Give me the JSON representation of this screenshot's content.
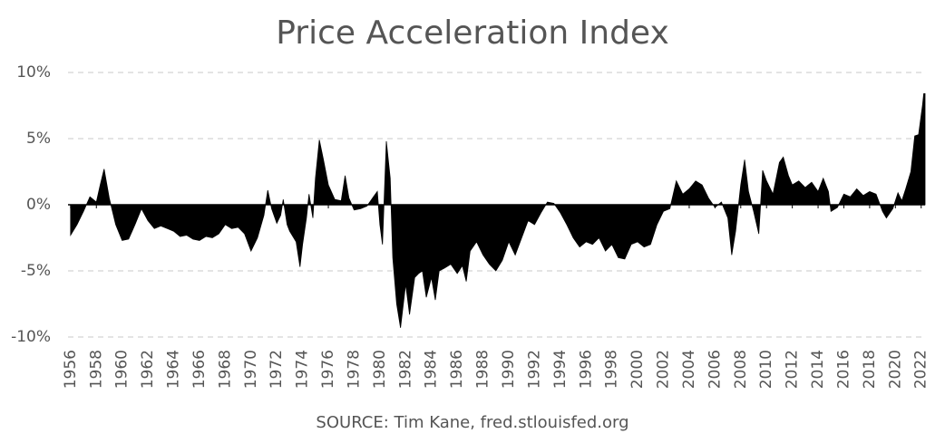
{
  "chart_data": {
    "type": "area",
    "title": "Price Acceleration Index",
    "source": "SOURCE: Tim Kane, fred.stlouisfed.org",
    "color": "#000000",
    "grid": true,
    "xlim": [
      1955.8,
      2022.3
    ],
    "ylim": [
      -10,
      10
    ],
    "yticks": [
      {
        "value": 10,
        "label": "10%"
      },
      {
        "value": 5,
        "label": "5%"
      },
      {
        "value": 0,
        "label": "0%"
      },
      {
        "value": -5,
        "label": "-5%"
      },
      {
        "value": -10,
        "label": "-10%"
      }
    ],
    "xticks": [
      1956,
      1958,
      1960,
      1962,
      1964,
      1966,
      1968,
      1970,
      1972,
      1974,
      1976,
      1978,
      1980,
      1982,
      1984,
      1986,
      1988,
      1990,
      1992,
      1994,
      1996,
      1998,
      2000,
      2002,
      2004,
      2006,
      2008,
      2010,
      2012,
      2014,
      2016,
      2018,
      2020,
      2022
    ],
    "x": [
      1956.0,
      1956.5,
      1957.0,
      1957.5,
      1958.0,
      1958.3,
      1958.6,
      1959.0,
      1959.5,
      1960.0,
      1960.5,
      1961.0,
      1961.5,
      1962.0,
      1962.5,
      1963.0,
      1963.5,
      1964.0,
      1964.5,
      1965.0,
      1965.5,
      1966.0,
      1966.5,
      1967.0,
      1967.5,
      1968.0,
      1968.5,
      1969.0,
      1969.5,
      1970.0,
      1970.5,
      1971.0,
      1971.3,
      1971.6,
      1972.0,
      1972.3,
      1972.5,
      1972.8,
      1973.0,
      1973.5,
      1973.8,
      1974.0,
      1974.3,
      1974.5,
      1974.8,
      1975.0,
      1975.3,
      1975.6,
      1976.0,
      1976.5,
      1977.0,
      1977.3,
      1977.6,
      1978.0,
      1978.5,
      1979.0,
      1979.5,
      1979.8,
      1980.0,
      1980.2,
      1980.5,
      1980.8,
      1981.0,
      1981.3,
      1981.6,
      1982.0,
      1982.3,
      1982.7,
      1983.0,
      1983.3,
      1983.6,
      1984.0,
      1984.3,
      1984.6,
      1985.0,
      1985.5,
      1986.0,
      1986.4,
      1986.7,
      1987.0,
      1987.5,
      1988.0,
      1988.5,
      1989.0,
      1989.5,
      1990.0,
      1990.5,
      1991.0,
      1991.5,
      1992.0,
      1992.5,
      1993.0,
      1993.5,
      1994.0,
      1994.5,
      1995.0,
      1995.5,
      1996.0,
      1996.5,
      1997.0,
      1997.5,
      1998.0,
      1998.5,
      1999.0,
      1999.5,
      2000.0,
      2000.5,
      2001.0,
      2001.5,
      2002.0,
      2002.5,
      2003.0,
      2003.5,
      2004.0,
      2004.5,
      2005.0,
      2005.5,
      2006.0,
      2006.5,
      2007.0,
      2007.3,
      2007.6,
      2008.0,
      2008.3,
      2008.6,
      2009.0,
      2009.4,
      2009.7,
      2010.0,
      2010.5,
      2011.0,
      2011.3,
      2011.7,
      2012.0,
      2012.5,
      2013.0,
      2013.5,
      2014.0,
      2014.4,
      2014.8,
      2015.0,
      2015.5,
      2016.0,
      2016.5,
      2017.0,
      2017.5,
      2018.0,
      2018.5,
      2019.0,
      2019.3,
      2019.8,
      2020.2,
      2020.5,
      2020.8,
      2021.2,
      2021.5,
      2021.8,
      2022.1,
      2022.2,
      2022.3
    ],
    "values": [
      -2.3,
      -1.5,
      -0.5,
      0.6,
      0.2,
      1.5,
      2.7,
      0.5,
      -1.5,
      -2.7,
      -2.6,
      -1.5,
      -0.3,
      -1.2,
      -1.8,
      -1.6,
      -1.8,
      -2.0,
      -2.4,
      -2.3,
      -2.6,
      -2.7,
      -2.4,
      -2.5,
      -2.2,
      -1.5,
      -1.8,
      -1.7,
      -2.2,
      -3.5,
      -2.5,
      -0.8,
      1.1,
      -0.3,
      -1.4,
      -0.8,
      0.4,
      -1.5,
      -2.0,
      -2.8,
      -4.7,
      -3.0,
      -1.0,
      0.8,
      -1.0,
      2.0,
      4.9,
      3.5,
      1.5,
      0.4,
      0.3,
      2.2,
      0.5,
      -0.4,
      -0.3,
      -0.1,
      0.6,
      1.0,
      -1.5,
      -3.0,
      4.8,
      2.0,
      -4.0,
      -7.5,
      -9.3,
      -6.0,
      -8.3,
      -5.5,
      -5.2,
      -5.0,
      -7.0,
      -5.5,
      -7.2,
      -5.0,
      -4.8,
      -4.5,
      -5.2,
      -4.6,
      -5.8,
      -3.5,
      -2.8,
      -3.8,
      -4.5,
      -5.0,
      -4.2,
      -2.8,
      -3.8,
      -2.5,
      -1.2,
      -1.5,
      -0.6,
      0.2,
      0.1,
      -0.6,
      -1.5,
      -2.5,
      -3.2,
      -2.8,
      -3.0,
      -2.5,
      -3.5,
      -3.0,
      -4.0,
      -4.1,
      -3.0,
      -2.8,
      -3.2,
      -3.0,
      -1.5,
      -0.5,
      -0.3,
      1.8,
      0.8,
      1.2,
      1.8,
      1.5,
      0.5,
      -0.2,
      0.2,
      -1.0,
      -3.8,
      -2.0,
      1.5,
      3.4,
      1.0,
      -0.5,
      -2.2,
      2.6,
      1.8,
      0.8,
      3.2,
      3.6,
      2.2,
      1.5,
      1.8,
      1.3,
      1.7,
      1.0,
      2.0,
      1.0,
      -0.5,
      -0.2,
      0.8,
      0.6,
      1.2,
      0.7,
      1.0,
      0.8,
      -0.5,
      -1.0,
      -0.3,
      0.9,
      0.3,
      1.2,
      2.5,
      5.2,
      5.3,
      7.5,
      8.4,
      8.4
    ]
  }
}
